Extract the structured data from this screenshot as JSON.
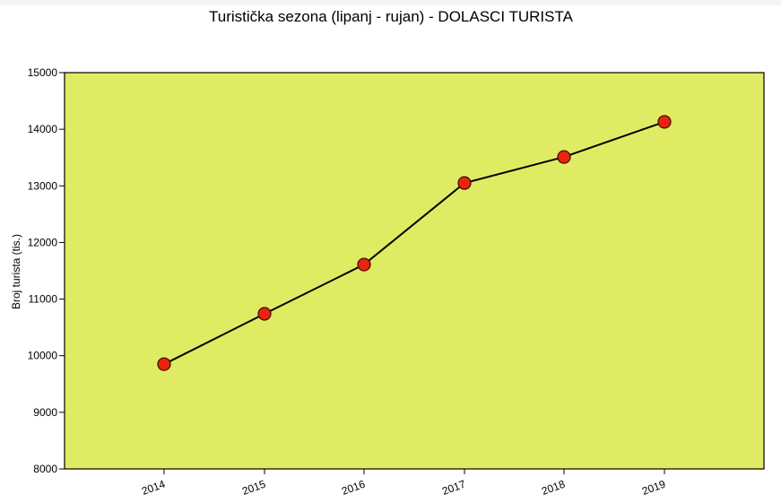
{
  "chart_data": {
    "type": "line",
    "title": "Turistička sezona (lipanj - rujan) - DOLASCI TURISTA",
    "xlabel": "",
    "ylabel": "Broj turista (tis.)",
    "categories": [
      "2014",
      "2015",
      "2016",
      "2017",
      "2018",
      "2019"
    ],
    "series": [
      {
        "values": [
          9850,
          10740,
          11610,
          13050,
          13510,
          14130
        ],
        "line_color": "#000000",
        "marker_color": "#e8240c",
        "marker_edge": "#3a0a00"
      }
    ],
    "ylim": [
      8000,
      15000
    ],
    "yticks": [
      8000,
      9000,
      10000,
      11000,
      12000,
      13000,
      14000,
      15000
    ],
    "plot_background": "#dfeb62",
    "grid": false
  }
}
